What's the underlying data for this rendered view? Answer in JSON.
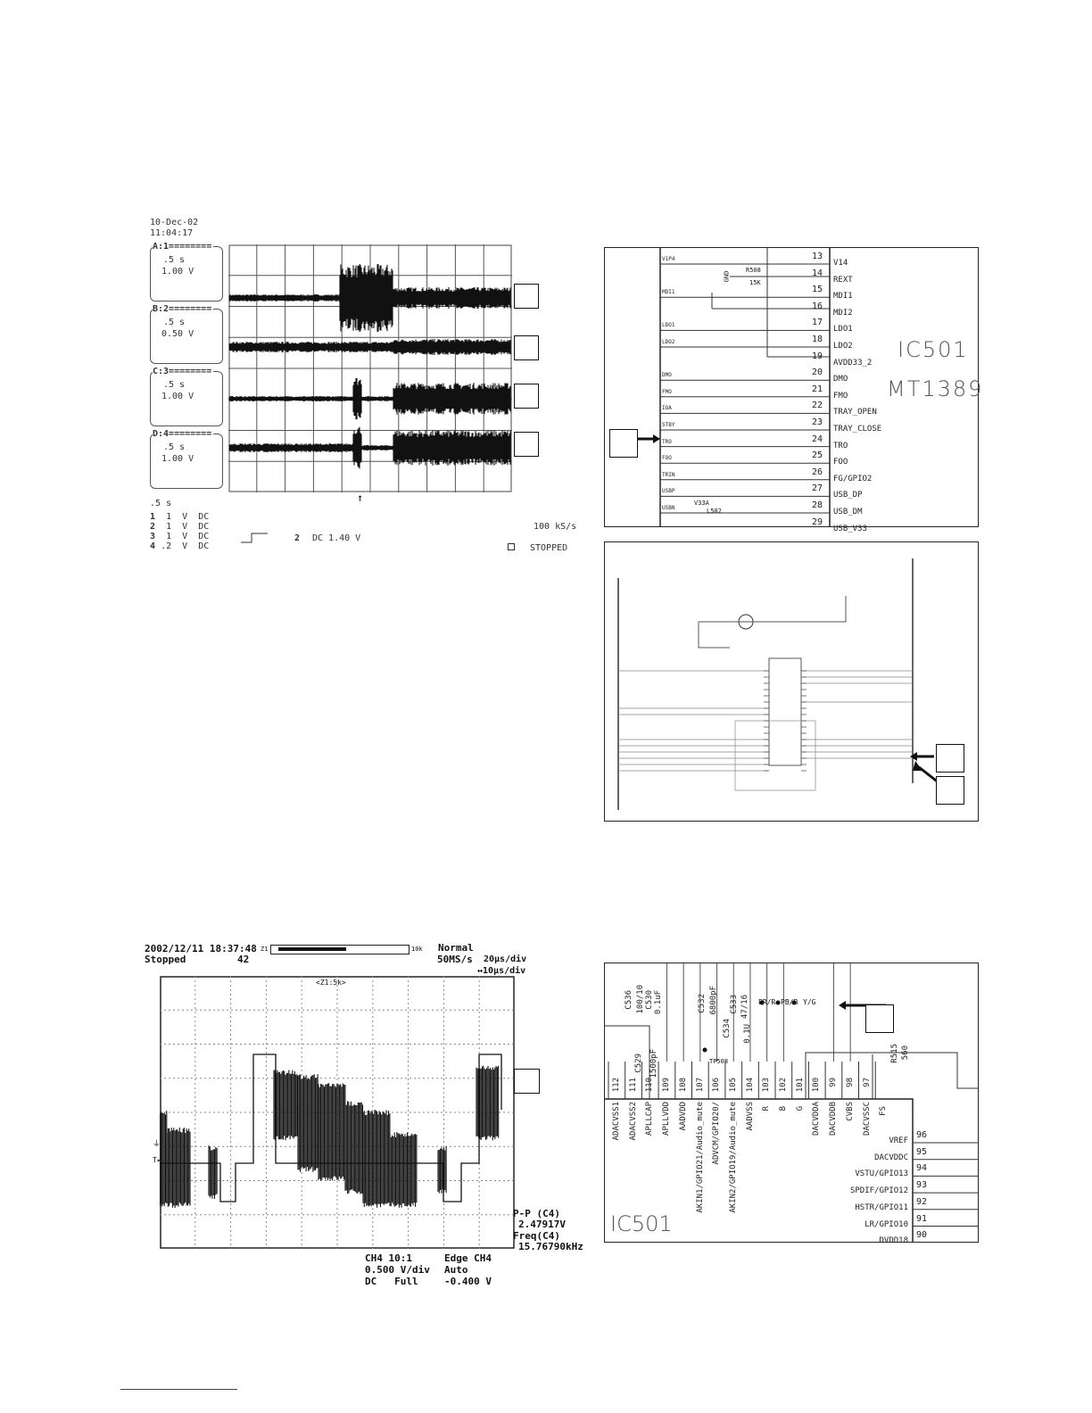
{
  "scope1": {
    "date": "10-Dec-02",
    "time": "11:04:17",
    "channels": [
      {
        "header": "A:1========",
        "timebase": ".5 s",
        "volts": "1.00 V"
      },
      {
        "header": "B:2========",
        "timebase": ".5 s",
        "volts": "0.50 V"
      },
      {
        "header": "C:3========",
        "timebase": ".5 s",
        "volts": "1.00 V"
      },
      {
        "header": "D:4========",
        "timebase": ".5 s",
        "volts": "1.00 V"
      }
    ],
    "timebase": ".5  s",
    "channel_settings": [
      {
        "num": "1",
        "scale": "1",
        "unit": "V",
        "coupling": "DC"
      },
      {
        "num": "2",
        "scale": "1",
        "unit": "V",
        "coupling": "DC"
      },
      {
        "num": "3",
        "scale": "1",
        "unit": "V",
        "coupling": "DC"
      },
      {
        "num": "4",
        "scale": ".2",
        "unit": "V",
        "coupling": "DC"
      }
    ],
    "trigger_channel": "2",
    "trigger_level": "DC 1.40 V",
    "sample_rate": "100 kS/s",
    "status": "STOPPED"
  },
  "schematic1": {
    "chip_name": "IC501",
    "chip_part": "MT1389",
    "resistor": "R508",
    "resistor_value": "15K",
    "gnd": "GND",
    "inductor": "L502",
    "supply": "V33A",
    "pins": [
      {
        "num": "13",
        "name": "V14",
        "net": "V1P4"
      },
      {
        "num": "14",
        "name": "REXT",
        "net": ""
      },
      {
        "num": "15",
        "name": "MDI1",
        "net": "MDI1"
      },
      {
        "num": "16",
        "name": "MDI2",
        "net": ""
      },
      {
        "num": "17",
        "name": "LDO1",
        "net": "LDO1"
      },
      {
        "num": "18",
        "name": "LDO2",
        "net": "LDO2"
      },
      {
        "num": "19",
        "name": "AVDD33_2",
        "net": ""
      },
      {
        "num": "20",
        "name": "DMO",
        "net": "DMO"
      },
      {
        "num": "21",
        "name": "FMO",
        "net": "FMO"
      },
      {
        "num": "22",
        "name": "TRAY_OPEN",
        "net": "IOA"
      },
      {
        "num": "23",
        "name": "TRAY_CLOSE",
        "net": "STBY"
      },
      {
        "num": "24",
        "name": "TRO",
        "net": "TRO"
      },
      {
        "num": "25",
        "name": "FOO",
        "net": "FOO"
      },
      {
        "num": "26",
        "name": "FG/GPIO2",
        "net": "TRIN"
      },
      {
        "num": "27",
        "name": "USB_DP",
        "net": "USBP"
      },
      {
        "num": "28",
        "name": "USB_DM",
        "net": "USBN"
      },
      {
        "num": "29",
        "name": "USB_V33",
        "net": ""
      }
    ]
  },
  "scope2": {
    "datetime": "2002/12/11 18:37:48",
    "zoom_left": "Z1",
    "zoom_right": "10k",
    "status": "Stopped",
    "count": "42",
    "mode": "Normal",
    "sample_rate": "50MS/s",
    "timebase": "20µs/div",
    "zoom_timebase": "↔10µs/div",
    "zoom_label": "<Z1:5k>",
    "meas1_label": "P-P (C4)",
    "meas1_value": "2.47917V",
    "meas2_label": "Freq(C4)",
    "meas2_value": "15.76790kHz",
    "ch_probe": "CH4 10:1",
    "ch_scale": "0.500 V/div",
    "ch_coupling": "DC   Full",
    "trig_source": "Edge CH4",
    "trig_mode": "Auto",
    "trig_level": "-0.400 V"
  },
  "schematic3": {
    "chip_name": "IC501",
    "top_pins": [
      {
        "num": "112",
        "name": "ADACVSS1"
      },
      {
        "num": "111",
        "name": "ADACVSS2"
      },
      {
        "num": "110",
        "name": "APLLCAP"
      },
      {
        "num": "109",
        "name": "APLLVDD"
      },
      {
        "num": "108",
        "name": "AADVDD"
      },
      {
        "num": "107",
        "name": "AKIN1/GPIO21/Audio_mute"
      },
      {
        "num": "106",
        "name": "ADVCM/GPIO20/"
      },
      {
        "num": "105",
        "name": "AKIN2/GPIO19/Audio_mute"
      },
      {
        "num": "104",
        "name": "AADVSS"
      },
      {
        "num": "103",
        "name": "R"
      },
      {
        "num": "102",
        "name": "B"
      },
      {
        "num": "101",
        "name": "G"
      },
      {
        "num": "100",
        "name": "DACVDDA"
      },
      {
        "num": "99",
        "name": "DACVDDB"
      },
      {
        "num": "98",
        "name": "CVBS"
      },
      {
        "num": "97",
        "name": "DACVSSC"
      },
      {
        "num": "",
        "name": "FS"
      }
    ],
    "side_pins": [
      {
        "num": "96",
        "name": "VREF"
      },
      {
        "num": "95",
        "name": "DACVDDC"
      },
      {
        "num": "94",
        "name": "VSTU/GPIO13"
      },
      {
        "num": "93",
        "name": "SPDIF/GPIO12"
      },
      {
        "num": "92",
        "name": "HSTR/GPIO11"
      },
      {
        "num": "91",
        "name": "LR/GPIO10"
      },
      {
        "num": "90",
        "name": "DVDD18"
      }
    ],
    "components": [
      "C536",
      "100/10",
      "C530",
      "0.1uF",
      "C529",
      "1500pF",
      "C532",
      "6800pF",
      "C533",
      "47/16",
      "C534",
      "0.1U",
      "TP508",
      "R515",
      "560"
    ],
    "nets": [
      "PR/R",
      "PB/B",
      "Y/G"
    ]
  }
}
